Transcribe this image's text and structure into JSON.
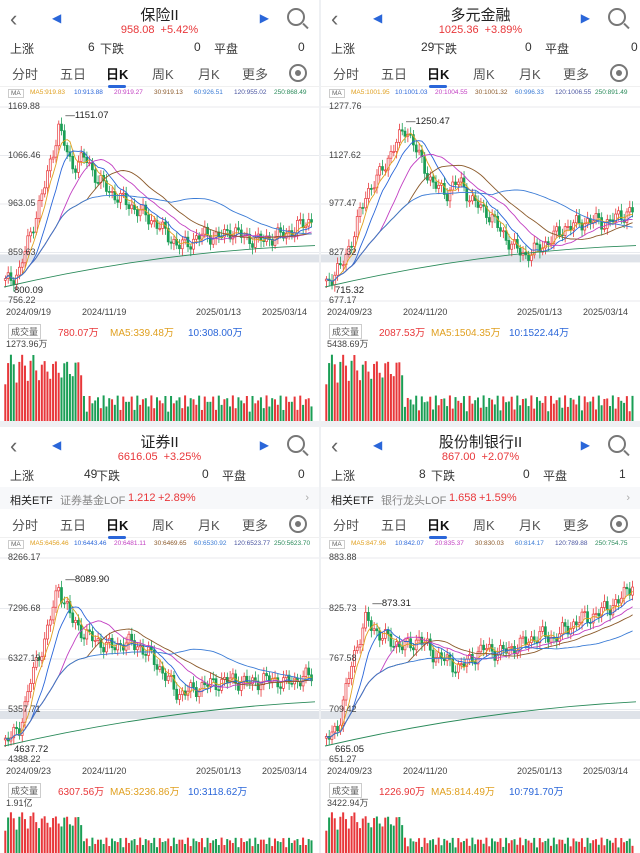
{
  "colors": {
    "up": "#e8373a",
    "down": "#1a9e55",
    "ma5": "#e0a020",
    "ma10": "#2a66d9",
    "ma20": "#c23fc2",
    "ma30": "#8b5a2b",
    "ma60": "#3a7bd5",
    "ma120": "#4a55a0",
    "ma250": "#2a8a5a"
  },
  "tabs": [
    "分时",
    "五日",
    "日K",
    "周K",
    "月K",
    "更多"
  ],
  "labels": {
    "up": "上涨",
    "down": "下跌",
    "flat": "平盘",
    "ma": "MA",
    "vol": "成交量"
  },
  "panels": [
    {
      "title": "保险II",
      "price": "958.08",
      "change": "+5.42%",
      "up_count": "6",
      "down_count": "0",
      "flat_count": "0",
      "ma": [
        "MA5:919.83",
        "10:913.88",
        "20:919.27",
        "30:919.13",
        "60:926.51",
        "120:955.02",
        "250:868.49"
      ],
      "y_ticks": [
        "1169.88",
        "1066.46",
        "963.05",
        "859.63",
        "756.22"
      ],
      "high": "1151.07",
      "low": "800.09",
      "dates": [
        "2024/09/19",
        "2024/11/19",
        "2025/01/13",
        "2025/03/14"
      ],
      "vol_values": [
        "780.07万",
        "MA5:339.48万",
        "10:308.00万"
      ],
      "vol_max": "1273.96万",
      "chart_data": {
        "type": "candlestick",
        "title": "保险II",
        "ylim": [
          756.22,
          1169.88
        ],
        "high": 1151.07,
        "low": 800.09,
        "last": 958.08
      }
    },
    {
      "title": "多元金融",
      "price": "1025.36",
      "change": "+3.89%",
      "up_count": "29",
      "down_count": "0",
      "flat_count": "0",
      "ma": [
        "MA5:1001.95",
        "10:1001.03",
        "20:1004.55",
        "30:1001.32",
        "60:996.33",
        "120:1006.55",
        "250:891.49"
      ],
      "y_ticks": [
        "1277.76",
        "1127.62",
        "977.47",
        "827.32",
        "677.17"
      ],
      "high": "1250.47",
      "low": "715.32",
      "dates": [
        "2024/09/23",
        "2024/11/20",
        "2025/01/13",
        "2025/03/14"
      ],
      "vol_values": [
        "2087.53万",
        "MA5:1504.35万",
        "10:1522.44万"
      ],
      "vol_max": "5438.69万",
      "chart_data": {
        "type": "candlestick",
        "title": "多元金融",
        "ylim": [
          677.17,
          1277.76
        ],
        "high": 1250.47,
        "low": 715.32,
        "last": 1025.36
      }
    },
    {
      "title": "证券II",
      "price": "6616.05",
      "change": "+3.25%",
      "up_count": "49",
      "down_count": "0",
      "flat_count": "0",
      "etf": {
        "tag": "相关ETF",
        "name": "证券基金LOF",
        "price": "1.212",
        "change": "+2.89%"
      },
      "ma": [
        "MA5:6456.46",
        "10:6443.46",
        "20:6481.11",
        "30:6469.65",
        "60:6530.92",
        "120:6523.77",
        "250:5623.70"
      ],
      "y_ticks": [
        "8266.17",
        "7296.68",
        "6327.19",
        "5357.71",
        "4388.22"
      ],
      "high": "8089.90",
      "low": "4637.72",
      "dates": [
        "2024/09/23",
        "2024/11/20",
        "2025/01/13",
        "2025/03/14"
      ],
      "vol_values": [
        "6307.56万",
        "MA5:3236.86万",
        "10:3118.62万"
      ],
      "vol_max": "1.91亿",
      "chart_data": {
        "type": "candlestick",
        "title": "证券II",
        "ylim": [
          4388.22,
          8266.17
        ],
        "high": 8089.9,
        "low": 4637.72,
        "last": 6616.05
      }
    },
    {
      "title": "股份制银行II",
      "price": "867.00",
      "change": "+2.07%",
      "up_count": "8",
      "down_count": "0",
      "flat_count": "1",
      "etf": {
        "tag": "相关ETF",
        "name": "银行龙头LOF",
        "price": "1.658",
        "change": "+1.59%"
      },
      "ma": [
        "MA5:847.96",
        "10:842.07",
        "20:835.37",
        "30:830.03",
        "60:814.17",
        "120:789.88",
        "250:754.75"
      ],
      "y_ticks": [
        "883.88",
        "825.73",
        "767.58",
        "709.42",
        "651.27"
      ],
      "high": "873.31",
      "low": "665.05",
      "dates": [
        "2024/09/23",
        "2024/11/20",
        "2025/01/13",
        "2025/03/14"
      ],
      "vol_values": [
        "1226.90万",
        "MA5:814.49万",
        "10:791.70万"
      ],
      "vol_max": "3422.94万",
      "chart_data": {
        "type": "candlestick",
        "title": "股份制银行II",
        "ylim": [
          651.27,
          883.88
        ],
        "high": 873.31,
        "low": 665.05,
        "last": 867.0
      }
    }
  ]
}
